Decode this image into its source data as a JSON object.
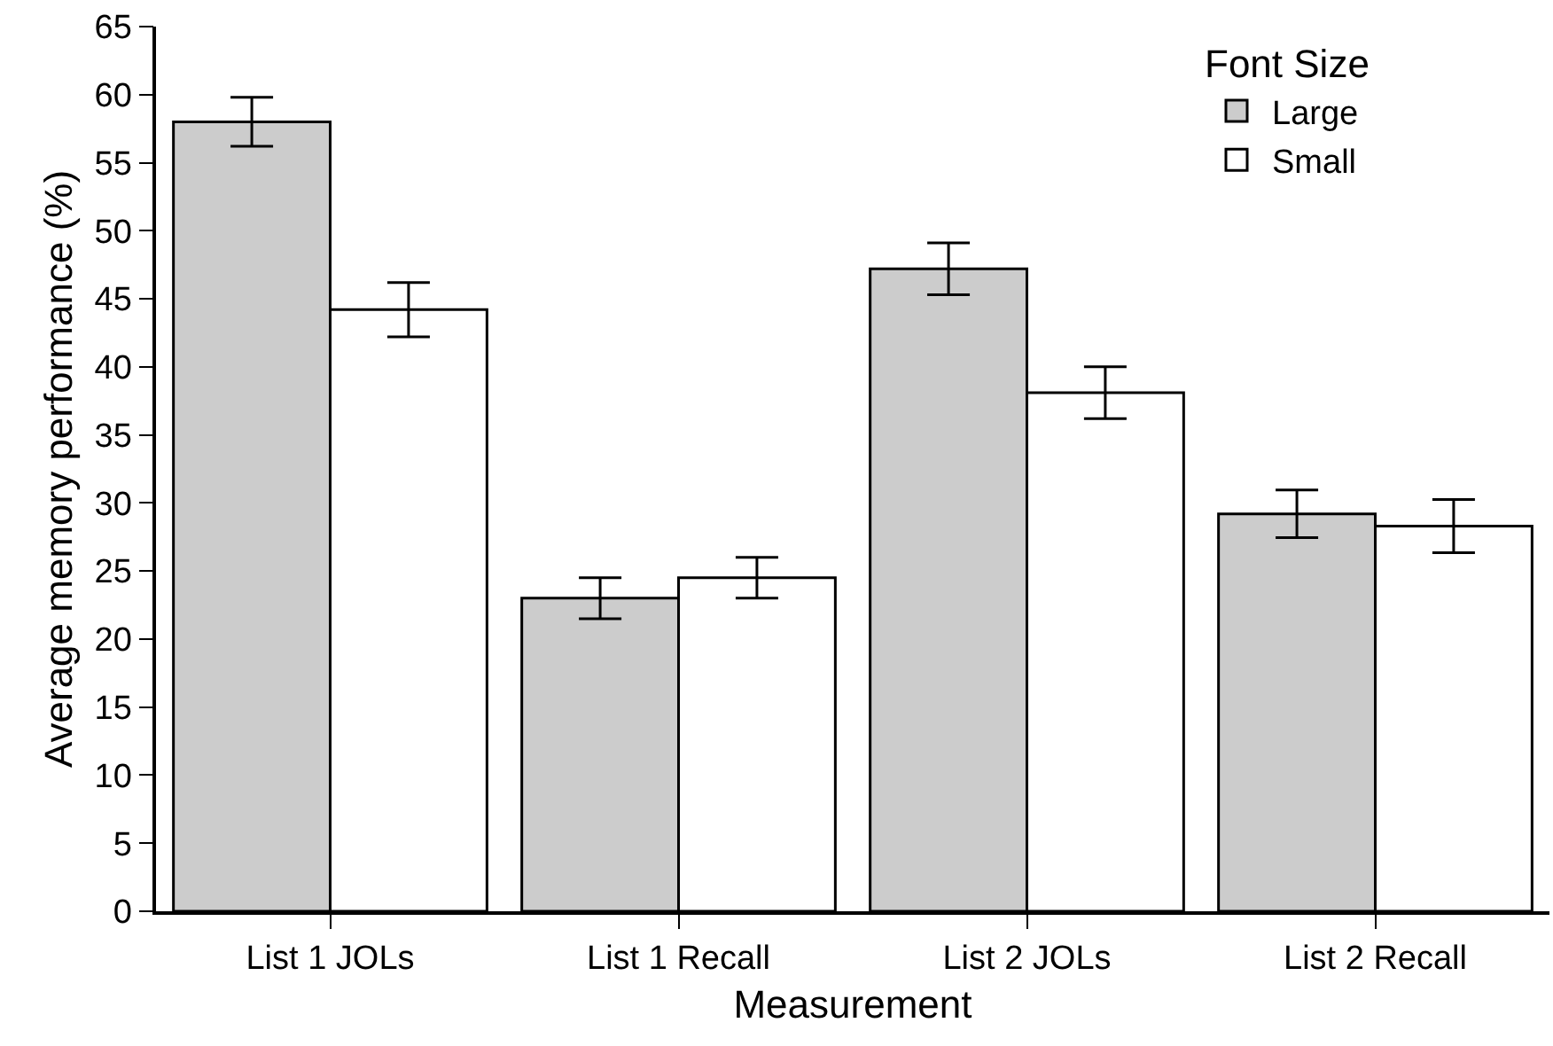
{
  "chart_data": {
    "type": "bar",
    "xlabel": "Measurement",
    "ylabel": "Average memory performance (%)",
    "legend_title": "Font Size",
    "categories": [
      "List 1 JOLs",
      "List 1 Recall",
      "List 2 JOLs",
      "List 2 Recall"
    ],
    "series": [
      {
        "name": "Large",
        "color": "#cccccc",
        "values": [
          58.0,
          23.0,
          47.2,
          29.2
        ],
        "errors": [
          1.8,
          1.5,
          1.9,
          1.75
        ]
      },
      {
        "name": "Small",
        "color": "#ffffff",
        "values": [
          44.2,
          24.5,
          38.1,
          28.3
        ],
        "errors": [
          2.0,
          1.5,
          1.9,
          1.95
        ]
      }
    ],
    "ylim": [
      0,
      65
    ],
    "yticks": [
      0,
      5,
      10,
      15,
      20,
      25,
      30,
      35,
      40,
      45,
      50,
      55,
      60,
      65
    ],
    "grid": false,
    "legend": "top right"
  }
}
